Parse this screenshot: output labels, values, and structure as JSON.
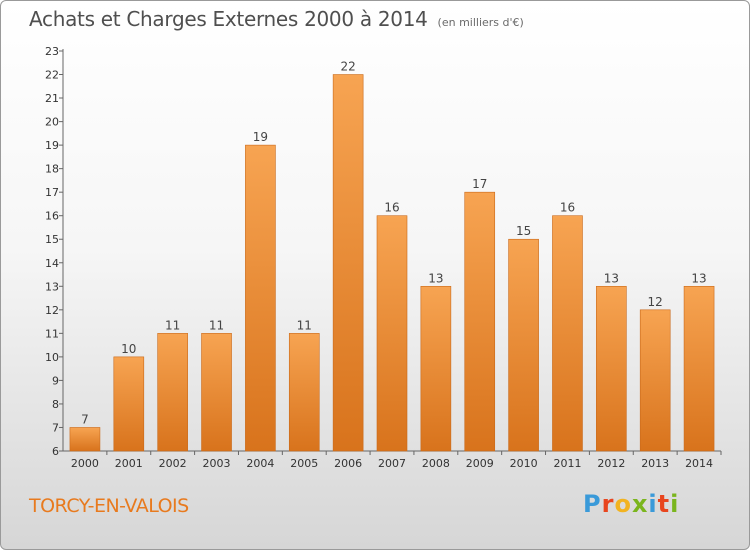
{
  "header": {
    "title": "Achats et Charges Externes 2000 à 2014",
    "subtitle": "(en milliers d'€)"
  },
  "location": "TORCY-EN-VALOIS",
  "brand": {
    "letters": [
      "P",
      "r",
      "o",
      "x",
      "i",
      "t",
      "i"
    ],
    "colors": [
      "#3a9ad9",
      "#e8451e",
      "#f2b320",
      "#7ab51d",
      "#3a9ad9",
      "#e8451e",
      "#7ab51d"
    ]
  },
  "colors": {
    "bar_top": "#f7a452",
    "bar_bottom": "#d8731c",
    "bar_stroke": "#c9691a",
    "value_label": "#444444",
    "tick_label": "#333333"
  },
  "chart_data": {
    "type": "bar",
    "categories": [
      "2000",
      "2001",
      "2002",
      "2003",
      "2004",
      "2005",
      "2006",
      "2007",
      "2008",
      "2009",
      "2010",
      "2011",
      "2012",
      "2013",
      "2014"
    ],
    "values": [
      7,
      10,
      11,
      11,
      19,
      11,
      22,
      16,
      13,
      17,
      15,
      16,
      13,
      12,
      13
    ],
    "title": "Achats et Charges Externes 2000 à 2014",
    "xlabel": "",
    "ylabel": "",
    "ylim": [
      6,
      23
    ],
    "yticks": [
      6,
      7,
      8,
      9,
      10,
      11,
      12,
      13,
      14,
      15,
      16,
      17,
      18,
      19,
      20,
      21,
      22,
      23
    ],
    "grid": false,
    "legend": "none"
  }
}
